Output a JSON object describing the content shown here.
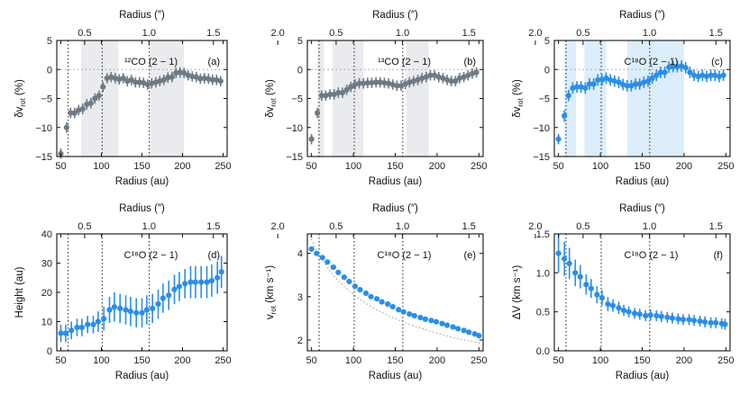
{
  "colors": {
    "gray": "#6e7a84",
    "blue": "#2b8ee8",
    "shade_gray": "#e9ebee",
    "shade_blue": "#dcedfb",
    "axis": "#111111",
    "ref": "#999999"
  },
  "shared": {
    "xlabel": "Radius   (au)",
    "top_label": "Radius   (″)",
    "x_ticks": [
      "50",
      "100",
      "150",
      "200",
      "250"
    ],
    "top_ticks": [
      "0.5",
      "1.0",
      "1.5",
      "2.0"
    ],
    "xlim": [
      45,
      255
    ],
    "gaps_au": [
      59,
      101,
      159
    ]
  },
  "chart_data": [
    {
      "type": "scatter",
      "name": "a",
      "tag": "(a)",
      "species": "¹²CO (2 − 1)",
      "ylabel": "δv_rot   (%)",
      "ylim": [
        -15,
        5
      ],
      "y_ticks": [
        "5",
        "0",
        "−5",
        "−10",
        "−15"
      ],
      "color": "gray",
      "shades": [
        [
          75,
          121
        ],
        [
          160,
          202
        ]
      ],
      "zero_line": true,
      "x": [
        50,
        57,
        62,
        67,
        72,
        77,
        82,
        87,
        92,
        97,
        102,
        107,
        112,
        117,
        122,
        127,
        132,
        137,
        142,
        147,
        152,
        157,
        162,
        167,
        172,
        177,
        182,
        187,
        192,
        197,
        202,
        207,
        212,
        217,
        222,
        227,
        232,
        237,
        242,
        247
      ],
      "y": [
        -14.5,
        -10,
        -7.5,
        -7.5,
        -7,
        -6.8,
        -6,
        -5.8,
        -5,
        -4.5,
        -3,
        -1.5,
        -1.3,
        -1.5,
        -1.7,
        -1.5,
        -2,
        -1.8,
        -2.2,
        -2.2,
        -2.3,
        -2.6,
        -2.4,
        -2.2,
        -2,
        -1.8,
        -1.4,
        -1.3,
        -0.6,
        -0.5,
        -0.6,
        -1,
        -1.2,
        -1.3,
        -1.6,
        -1.5,
        -1.6,
        -1.8,
        -1.8,
        -2
      ],
      "err": [
        0.9,
        0.9,
        0.9,
        0.9,
        0.9,
        0.9,
        0.9,
        0.9,
        0.9,
        0.9,
        0.9,
        0.9,
        0.9,
        0.9,
        0.9,
        0.9,
        0.9,
        0.9,
        0.9,
        0.9,
        0.9,
        0.9,
        0.9,
        0.9,
        0.9,
        0.9,
        0.9,
        0.9,
        0.9,
        0.9,
        0.9,
        0.9,
        0.9,
        0.9,
        0.9,
        0.9,
        0.9,
        0.9,
        0.9,
        0.9
      ]
    },
    {
      "type": "scatter",
      "name": "b",
      "tag": "(b)",
      "species": "¹³CO (2 − 1)",
      "ylabel": "δv_rot   (%)",
      "ylim": [
        -15,
        5
      ],
      "y_ticks": [
        "5",
        "0",
        "−5",
        "−10",
        "−15"
      ],
      "color": "gray",
      "shades": [
        [
          57,
          65
        ],
        [
          75,
          112
        ],
        [
          163,
          190
        ]
      ],
      "zero_line": true,
      "x": [
        50,
        57,
        62,
        67,
        72,
        77,
        82,
        87,
        92,
        97,
        102,
        107,
        112,
        117,
        122,
        127,
        132,
        137,
        142,
        147,
        152,
        157,
        162,
        167,
        172,
        177,
        182,
        187,
        192,
        197,
        202,
        207,
        212,
        217,
        222,
        227,
        232,
        237,
        242,
        247
      ],
      "y": [
        -12,
        -7.5,
        -4.5,
        -4.5,
        -4.3,
        -4.3,
        -4,
        -4,
        -3.5,
        -3,
        -2.6,
        -2.4,
        -2.4,
        -2.3,
        -2.3,
        -2.2,
        -2.2,
        -2.3,
        -2.4,
        -2.6,
        -2.8,
        -2.8,
        -2.5,
        -2.2,
        -2,
        -1.8,
        -1.5,
        -1.3,
        -1,
        -1,
        -1.3,
        -1.5,
        -1.8,
        -2,
        -2,
        -1.5,
        -1.3,
        -1,
        -0.7,
        -0.5
      ],
      "err": [
        0.9,
        0.9,
        0.9,
        0.9,
        0.9,
        0.9,
        0.9,
        0.9,
        0.9,
        0.9,
        0.9,
        0.9,
        0.9,
        0.9,
        0.9,
        0.9,
        0.9,
        0.9,
        0.9,
        0.9,
        0.9,
        0.9,
        0.9,
        0.9,
        0.9,
        0.9,
        0.9,
        0.9,
        0.9,
        0.9,
        0.9,
        0.9,
        0.9,
        0.9,
        0.9,
        0.9,
        0.9,
        0.9,
        0.9,
        0.9
      ]
    },
    {
      "type": "scatter",
      "name": "c",
      "tag": "(c)",
      "species": "C¹⁸O (2 − 1)",
      "ylabel": "δv_rot   (%)",
      "ylim": [
        -15,
        5
      ],
      "y_ticks": [
        "5",
        "0",
        "−5",
        "−10",
        "−15"
      ],
      "color": "blue",
      "shades": [
        [
          57,
          71
        ],
        [
          81,
          107
        ],
        [
          132,
          200
        ]
      ],
      "zero_line": true,
      "x": [
        50,
        57,
        62,
        67,
        72,
        77,
        82,
        87,
        92,
        97,
        102,
        107,
        112,
        117,
        122,
        127,
        132,
        137,
        142,
        147,
        152,
        157,
        162,
        167,
        172,
        177,
        182,
        187,
        192,
        197,
        202,
        207,
        212,
        217,
        222,
        227,
        232,
        237,
        242,
        247
      ],
      "y": [
        -12,
        -8,
        -4.5,
        -3.2,
        -3,
        -3,
        -3.2,
        -2.5,
        -2.5,
        -1.8,
        -1.8,
        -1.5,
        -1.8,
        -2,
        -2.2,
        -2.6,
        -2.8,
        -2.8,
        -2.5,
        -2.5,
        -2.2,
        -2,
        -1.5,
        -1,
        -0.5,
        -0.5,
        0.4,
        0.5,
        0.5,
        0.6,
        0.3,
        -0.5,
        -1,
        -1.2,
        -1,
        -1.2,
        -1,
        -1,
        -1.2,
        -1
      ],
      "err": [
        0.9,
        1,
        1,
        1,
        1,
        1,
        1,
        1,
        1,
        1,
        1,
        1,
        1,
        1,
        1,
        1,
        1,
        1,
        1,
        1,
        1,
        1,
        1,
        1,
        1,
        1,
        1,
        1,
        1,
        1,
        1,
        1,
        1,
        1,
        1,
        1,
        1,
        1,
        1,
        1
      ]
    },
    {
      "type": "scatter",
      "name": "d",
      "tag": "(d)",
      "species": "C¹⁸O (2 − 1)",
      "ylabel": "Height   (au)",
      "ylim": [
        0,
        40
      ],
      "y_ticks": [
        "40",
        "30",
        "20",
        "10",
        "0"
      ],
      "color": "blue",
      "shades": [],
      "zero_line": false,
      "x": [
        50,
        56,
        63,
        70,
        76,
        83,
        90,
        96,
        103,
        110,
        116,
        123,
        130,
        136,
        143,
        150,
        156,
        163,
        170,
        176,
        183,
        190,
        196,
        203,
        210,
        216,
        223,
        230,
        236,
        243,
        248
      ],
      "y": [
        6,
        6,
        7,
        8,
        8,
        9,
        9,
        10,
        11,
        14,
        15,
        14.5,
        14,
        13.5,
        13,
        13,
        14,
        14.5,
        16,
        18,
        19,
        21,
        22,
        23,
        23.5,
        23.5,
        23.5,
        23.5,
        24,
        25,
        27
      ],
      "err": [
        3,
        3,
        3,
        3,
        3,
        3,
        3,
        3.5,
        4,
        4.5,
        5,
        5,
        5,
        5,
        5,
        5,
        5,
        5,
        5,
        5,
        5,
        5,
        5,
        5,
        5.5,
        5.5,
        5.5,
        5.5,
        5.5,
        5.5,
        5.5
      ]
    },
    {
      "type": "scatter",
      "name": "e",
      "tag": "(e)",
      "species": "C¹⁸O (2 − 1)",
      "ylabel": "v_rot   (km s⁻¹)",
      "ylim": [
        1.75,
        4.45
      ],
      "y_ticks": [
        "4",
        "3",
        "2"
      ],
      "y_tick_vals": [
        4,
        3,
        2
      ],
      "color": "blue",
      "shades": [],
      "zero_line": false,
      "keplerian": true,
      "x": [
        50,
        56,
        63,
        69,
        76,
        82,
        89,
        95,
        102,
        108,
        115,
        121,
        128,
        134,
        141,
        147,
        154,
        160,
        167,
        173,
        180,
        186,
        193,
        199,
        206,
        212,
        219,
        225,
        232,
        238,
        245,
        250
      ],
      "y": [
        4.1,
        4.0,
        3.9,
        3.8,
        3.68,
        3.56,
        3.45,
        3.35,
        3.24,
        3.16,
        3.08,
        3.0,
        2.95,
        2.88,
        2.83,
        2.77,
        2.7,
        2.65,
        2.6,
        2.56,
        2.52,
        2.48,
        2.45,
        2.42,
        2.38,
        2.34,
        2.3,
        2.26,
        2.22,
        2.18,
        2.14,
        2.1
      ],
      "err": [
        0,
        0,
        0,
        0,
        0,
        0,
        0,
        0,
        0,
        0,
        0,
        0,
        0,
        0,
        0,
        0,
        0,
        0,
        0,
        0,
        0,
        0,
        0,
        0,
        0,
        0,
        0,
        0,
        0,
        0,
        0,
        0
      ]
    },
    {
      "type": "scatter",
      "name": "f",
      "tag": "(f)",
      "species": "C¹⁸O (2 − 1)",
      "ylabel": "ΔV   (km s⁻¹)",
      "ylim": [
        0,
        1.5
      ],
      "y_ticks": [
        "1.5",
        "1.0",
        "0.5",
        "0.0"
      ],
      "color": "blue",
      "shades": [],
      "zero_line": false,
      "x": [
        50,
        57,
        63,
        70,
        76,
        83,
        89,
        96,
        102,
        109,
        115,
        122,
        128,
        134,
        141,
        147,
        154,
        160,
        167,
        173,
        180,
        186,
        193,
        199,
        206,
        212,
        219,
        225,
        232,
        238,
        245,
        249
      ],
      "y": [
        1.25,
        1.18,
        1.12,
        1.0,
        0.95,
        0.85,
        0.8,
        0.72,
        0.68,
        0.6,
        0.58,
        0.55,
        0.52,
        0.5,
        0.48,
        0.47,
        0.45,
        0.46,
        0.45,
        0.44,
        0.43,
        0.42,
        0.41,
        0.4,
        0.4,
        0.39,
        0.38,
        0.37,
        0.36,
        0.36,
        0.35,
        0.34
      ],
      "err": [
        0.25,
        0.22,
        0.2,
        0.17,
        0.15,
        0.13,
        0.12,
        0.11,
        0.1,
        0.09,
        0.08,
        0.08,
        0.07,
        0.07,
        0.07,
        0.07,
        0.07,
        0.07,
        0.07,
        0.07,
        0.07,
        0.07,
        0.07,
        0.07,
        0.07,
        0.07,
        0.07,
        0.07,
        0.07,
        0.07,
        0.07,
        0.07
      ]
    }
  ]
}
